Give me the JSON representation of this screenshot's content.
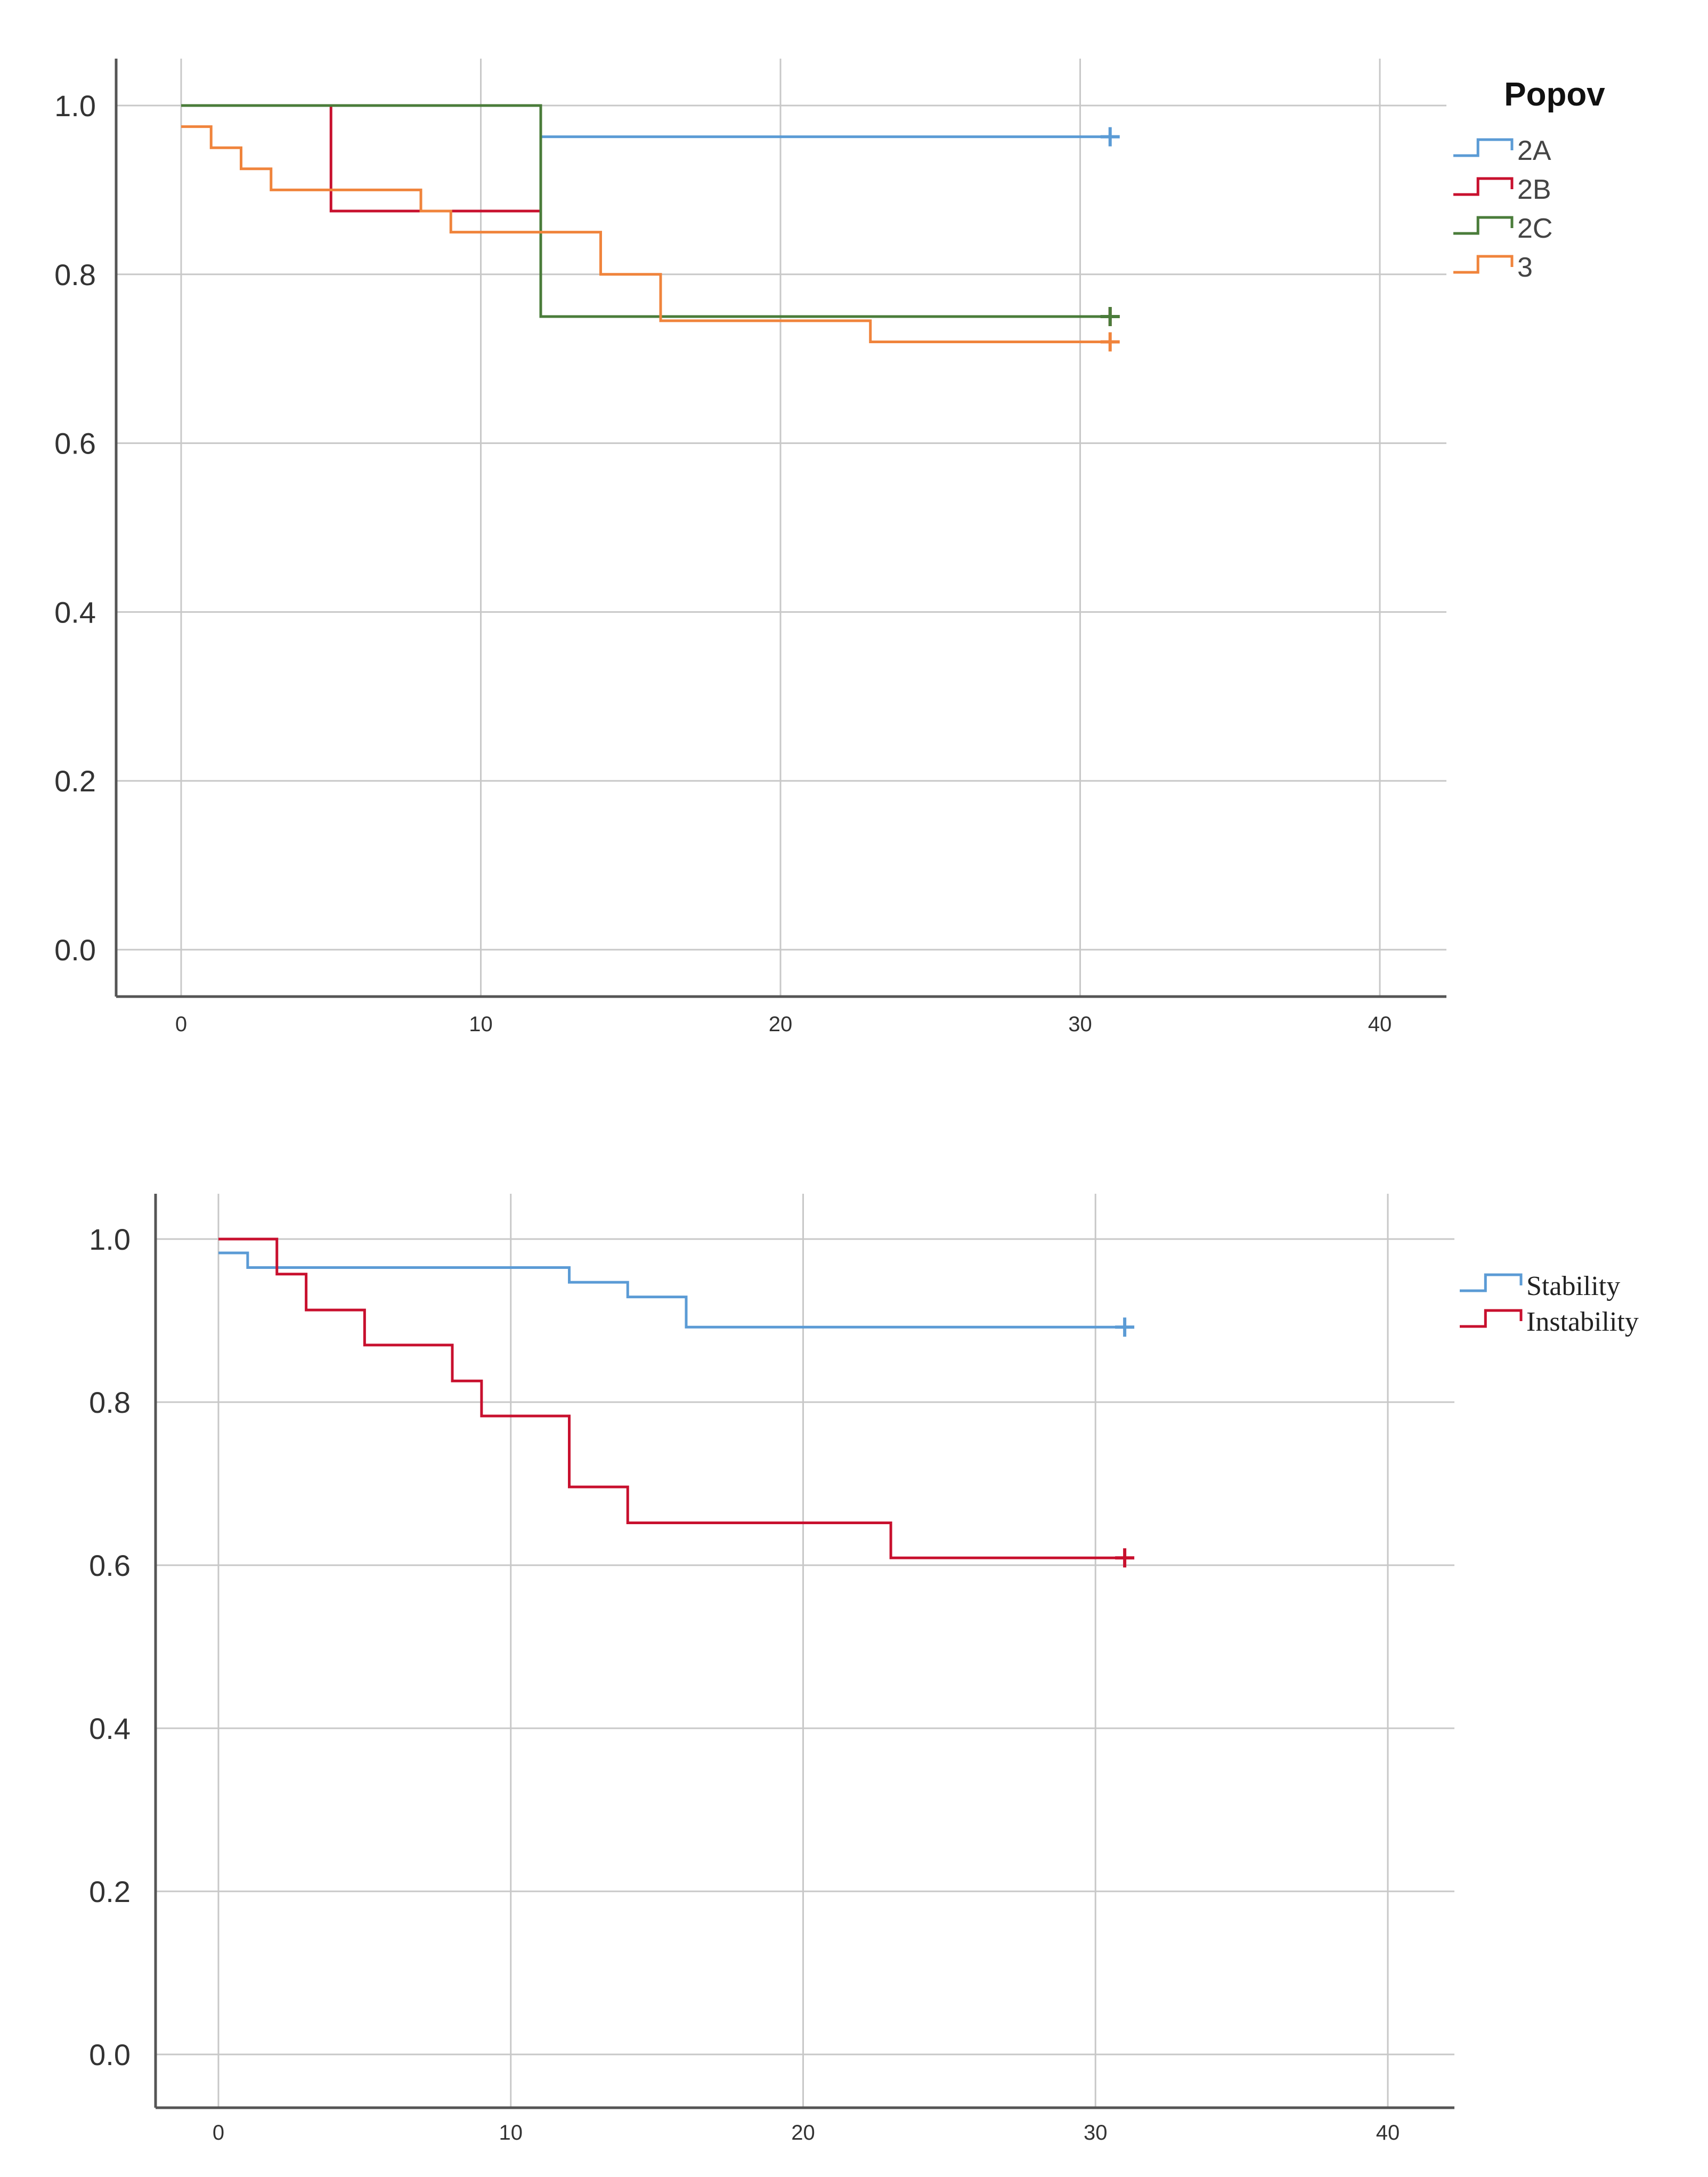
{
  "chart_data": [
    {
      "type": "line",
      "subtype": "kaplan-meier step",
      "title": "",
      "xlabel": "",
      "ylabel": "",
      "xlim": [
        -2,
        42
      ],
      "ylim": [
        -0.05,
        1.05
      ],
      "xticks": [
        0,
        10,
        20,
        30,
        40
      ],
      "yticks": [
        0.0,
        0.2,
        0.4,
        0.6,
        0.8,
        1.0
      ],
      "xtick_labels": [
        "0",
        "10",
        "20",
        "30",
        "40"
      ],
      "ytick_labels": [
        "0.0",
        "0.2",
        "0.4",
        "0.6",
        "0.8",
        "1.0"
      ],
      "grid": true,
      "legend_title": "Popov",
      "legend_position": "top-right",
      "series": [
        {
          "name": "2A",
          "color": "#5b9bd5",
          "x": [
            0,
            12,
            31
          ],
          "y": [
            1.0,
            0.963,
            0.963
          ],
          "censor": [
            31
          ]
        },
        {
          "name": "2B",
          "color": "#c8102e",
          "x": [
            0,
            5,
            12,
            31
          ],
          "y": [
            1.0,
            0.875,
            0.75,
            0.75
          ],
          "censor": [
            31
          ]
        },
        {
          "name": "2C",
          "color": "#4a7c3a",
          "x": [
            0,
            12,
            31
          ],
          "y": [
            1.0,
            0.75,
            0.75
          ],
          "censor": [
            31
          ]
        },
        {
          "name": "3",
          "color": "#f0843c",
          "x": [
            0,
            1,
            2,
            3,
            8,
            9,
            14,
            16,
            23,
            31
          ],
          "y": [
            0.975,
            0.95,
            0.925,
            0.9,
            0.875,
            0.85,
            0.8,
            0.745,
            0.72,
            0.72
          ],
          "censor": [
            31
          ]
        }
      ]
    },
    {
      "type": "line",
      "subtype": "kaplan-meier step",
      "title": "",
      "xlabel": "",
      "ylabel": "",
      "xlim": [
        -2,
        42
      ],
      "ylim": [
        -0.05,
        1.05
      ],
      "xticks": [
        0,
        10,
        20,
        30,
        40
      ],
      "yticks": [
        0.0,
        0.2,
        0.4,
        0.6,
        0.8,
        1.0
      ],
      "xtick_labels": [
        "0",
        "10",
        "20",
        "30",
        "40"
      ],
      "ytick_labels": [
        "0.0",
        "0.2",
        "0.4",
        "0.6",
        "0.8",
        "1.0"
      ],
      "grid": true,
      "legend_title": "",
      "legend_position": "top-right",
      "series": [
        {
          "name": "Stability",
          "color": "#5b9bd5",
          "x": [
            0,
            1,
            12,
            14,
            16,
            31
          ],
          "y": [
            0.983,
            0.965,
            0.947,
            0.929,
            0.892,
            0.892
          ],
          "censor": [
            31
          ]
        },
        {
          "name": "Instability",
          "color": "#c8102e",
          "x": [
            0,
            2,
            3,
            5,
            8,
            9,
            12,
            14,
            23,
            31
          ],
          "y": [
            1.0,
            0.957,
            0.913,
            0.87,
            0.826,
            0.783,
            0.696,
            0.652,
            0.609,
            0.609
          ],
          "censor": [
            31
          ]
        }
      ]
    }
  ]
}
